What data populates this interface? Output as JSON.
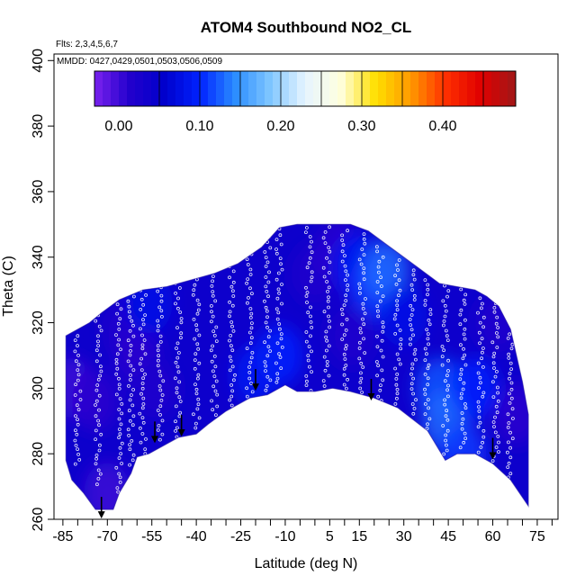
{
  "chart_data": {
    "type": "heatmap",
    "title": "ATOM4 Southbound NO2_CL",
    "flights_note": "Flts: 2,3,4,5,6,7",
    "dates_note": "MMDD: 0427,0429,0501,0503,0506,0509",
    "xlabel": "Latitude (deg N)",
    "ylabel": "Theta (C)",
    "xlim": [
      -88,
      82
    ],
    "ylim": [
      260,
      402
    ],
    "x_ticks": [
      -85,
      -70,
      -55,
      -40,
      -25,
      -10,
      5,
      15,
      30,
      45,
      60,
      75
    ],
    "x_minor_step": 5,
    "y_ticks": [
      260,
      280,
      300,
      320,
      340,
      360,
      380,
      400
    ],
    "colorbar": {
      "min": -0.03,
      "max": 0.49,
      "tick_values": [
        0.0,
        0.1,
        0.2,
        0.3,
        0.4
      ],
      "tick_labels": [
        "0.00",
        "0.10",
        "0.20",
        "0.30",
        "0.40"
      ],
      "colors": [
        "#7a22ee",
        "#2200cc",
        "#0000cc",
        "#0022ff",
        "#2a8cff",
        "#7fc6ff",
        "#e6f4ff",
        "#ffffe0",
        "#ffe000",
        "#ff9a00",
        "#ff3000",
        "#e00000",
        "#a01818"
      ]
    },
    "envelope": {
      "top": [
        [
          -84,
          316
        ],
        [
          -80,
          318
        ],
        [
          -76,
          320
        ],
        [
          -72,
          323
        ],
        [
          -66,
          327
        ],
        [
          -58,
          330
        ],
        [
          -50,
          331
        ],
        [
          -42,
          333
        ],
        [
          -34,
          335
        ],
        [
          -26,
          338
        ],
        [
          -18,
          343
        ],
        [
          -12,
          349
        ],
        [
          -6,
          350
        ],
        [
          0,
          350
        ],
        [
          6,
          350
        ],
        [
          12,
          350
        ],
        [
          18,
          348
        ],
        [
          24,
          344
        ],
        [
          30,
          340
        ],
        [
          36,
          336
        ],
        [
          42,
          332
        ],
        [
          48,
          331
        ],
        [
          54,
          330
        ],
        [
          58,
          328
        ],
        [
          62,
          325
        ],
        [
          66,
          318
        ],
        [
          68,
          310
        ],
        [
          70,
          302
        ],
        [
          72,
          292
        ]
      ],
      "bottom": [
        [
          72,
          264
        ],
        [
          66,
          272
        ],
        [
          60,
          277
        ],
        [
          54,
          280
        ],
        [
          48,
          280
        ],
        [
          44,
          278
        ],
        [
          38,
          287
        ],
        [
          28,
          294
        ],
        [
          20,
          297
        ],
        [
          12,
          299
        ],
        [
          6,
          300
        ],
        [
          0,
          299
        ],
        [
          -6,
          299
        ],
        [
          -10,
          301
        ],
        [
          -16,
          298
        ],
        [
          -22,
          297
        ],
        [
          -30,
          293
        ],
        [
          -36,
          289
        ],
        [
          -40,
          286
        ],
        [
          -46,
          285
        ],
        [
          -50,
          283
        ],
        [
          -56,
          280
        ],
        [
          -60,
          279
        ],
        [
          -62,
          274
        ],
        [
          -66,
          268
        ],
        [
          -68,
          263
        ],
        [
          -74,
          263
        ],
        [
          -78,
          268
        ],
        [
          -82,
          272
        ],
        [
          -84,
          278
        ]
      ]
    },
    "background_value": 0.04,
    "hotspots": [
      {
        "x": -82,
        "y": 300,
        "value": 0.0
      },
      {
        "x": -74,
        "y": 296,
        "value": 0.01
      },
      {
        "x": -70,
        "y": 268,
        "value": 0.0
      },
      {
        "x": -64,
        "y": 318,
        "value": 0.02
      },
      {
        "x": -60,
        "y": 310,
        "value": 0.01
      },
      {
        "x": -54,
        "y": 300,
        "value": 0.02
      },
      {
        "x": -56,
        "y": 326,
        "value": 0.08
      },
      {
        "x": -12,
        "y": 310,
        "value": 0.1
      },
      {
        "x": -20,
        "y": 304,
        "value": 0.09
      },
      {
        "x": 0,
        "y": 335,
        "value": 0.02
      },
      {
        "x": 8,
        "y": 342,
        "value": 0.01
      },
      {
        "x": 14,
        "y": 338,
        "value": 0.09
      },
      {
        "x": 20,
        "y": 330,
        "value": 0.11
      },
      {
        "x": 24,
        "y": 336,
        "value": 0.13
      },
      {
        "x": 12,
        "y": 316,
        "value": 0.02
      },
      {
        "x": 30,
        "y": 322,
        "value": 0.08
      },
      {
        "x": 42,
        "y": 300,
        "value": 0.12
      },
      {
        "x": 44,
        "y": 290,
        "value": 0.13
      },
      {
        "x": 54,
        "y": 300,
        "value": 0.1
      },
      {
        "x": 50,
        "y": 280,
        "value": 0.11
      },
      {
        "x": 62,
        "y": 320,
        "value": 0.02
      },
      {
        "x": 68,
        "y": 292,
        "value": 0.01
      }
    ],
    "flight_track_profiles": [
      {
        "x": -80,
        "y_min": 276,
        "y_max": 316
      },
      {
        "x": -73,
        "y_min": 270,
        "y_max": 322
      },
      {
        "x": -66,
        "y_min": 268,
        "y_max": 327
      },
      {
        "x": -62,
        "y_min": 276,
        "y_max": 328
      },
      {
        "x": -58,
        "y_min": 280,
        "y_max": 330
      },
      {
        "x": -52,
        "y_min": 283,
        "y_max": 331
      },
      {
        "x": -46,
        "y_min": 285,
        "y_max": 332
      },
      {
        "x": -40,
        "y_min": 287,
        "y_max": 333
      },
      {
        "x": -34,
        "y_min": 290,
        "y_max": 334
      },
      {
        "x": -28,
        "y_min": 293,
        "y_max": 337
      },
      {
        "x": -22,
        "y_min": 297,
        "y_max": 341
      },
      {
        "x": -16,
        "y_min": 298,
        "y_max": 346
      },
      {
        "x": -12,
        "y_min": 301,
        "y_max": 350
      },
      {
        "x": -2,
        "y_min": 299,
        "y_max": 349
      },
      {
        "x": 4,
        "y_min": 300,
        "y_max": 349
      },
      {
        "x": 10,
        "y_min": 299,
        "y_max": 348
      },
      {
        "x": 16,
        "y_min": 298,
        "y_max": 347
      },
      {
        "x": 22,
        "y_min": 296,
        "y_max": 343
      },
      {
        "x": 28,
        "y_min": 294,
        "y_max": 339
      },
      {
        "x": 33,
        "y_min": 291,
        "y_max": 336
      },
      {
        "x": 38,
        "y_min": 287,
        "y_max": 333
      },
      {
        "x": 44,
        "y_min": 279,
        "y_max": 331
      },
      {
        "x": 50,
        "y_min": 281,
        "y_max": 330
      },
      {
        "x": 56,
        "y_min": 280,
        "y_max": 329
      },
      {
        "x": 61,
        "y_min": 277,
        "y_max": 326
      },
      {
        "x": 66,
        "y_min": 272,
        "y_max": 318
      }
    ],
    "arrows": [
      {
        "x": -54,
        "y": 286
      },
      {
        "x": -45,
        "y": 288
      },
      {
        "x": -20,
        "y": 302
      },
      {
        "x": 19,
        "y": 299
      },
      {
        "x": 60,
        "y": 281
      },
      {
        "x": -72,
        "y": 263
      }
    ]
  }
}
